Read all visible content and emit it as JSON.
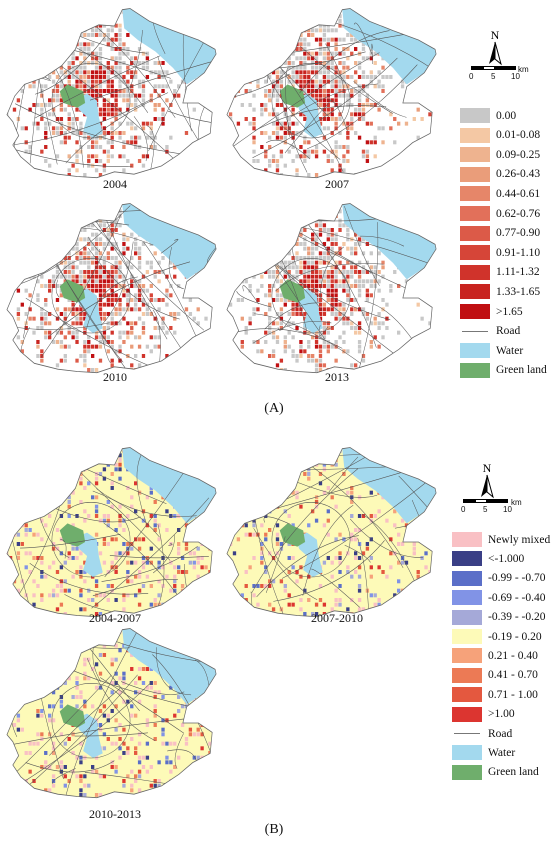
{
  "panel_a": {
    "label": "(A)",
    "maps": [
      {
        "year": "2004"
      },
      {
        "year": "2007"
      },
      {
        "year": "2010"
      },
      {
        "year": "2013"
      }
    ],
    "legend": [
      {
        "label": "0.00",
        "color": "#c8c8c8"
      },
      {
        "label": "0.01-0.08",
        "color": "#f4c8a4"
      },
      {
        "label": "0.09-0.25",
        "color": "#eeb38f"
      },
      {
        "label": "0.26-0.43",
        "color": "#ea9d7a"
      },
      {
        "label": "0.44-0.61",
        "color": "#e68669"
      },
      {
        "label": "0.62-0.76",
        "color": "#e2705a"
      },
      {
        "label": "0.77-0.90",
        "color": "#dc5a48"
      },
      {
        "label": "0.91-1.10",
        "color": "#d64538"
      },
      {
        "label": "1.11-1.32",
        "color": "#d0332b"
      },
      {
        "label": "1.33-1.65",
        "color": "#c8231f"
      },
      {
        "label": ">1.65",
        "color": "#c00f12"
      },
      {
        "label": "Road",
        "type": "line"
      },
      {
        "label": "Water",
        "color": "#a3d9ee"
      },
      {
        "label": "Green land",
        "color": "#6fae6c"
      }
    ]
  },
  "panel_b": {
    "label": "(B)",
    "maps": [
      {
        "year": "2004-2007"
      },
      {
        "year": "2007-2010"
      },
      {
        "year": "2010-2013"
      }
    ],
    "legend": [
      {
        "label": "Newly mixed",
        "color": "#f9c0c4"
      },
      {
        "label": "<-1.000",
        "color": "#3a3f86"
      },
      {
        "label": "-0.99 - -0.70",
        "color": "#5b6fc8"
      },
      {
        "label": "-0.69 - -0.40",
        "color": "#8193e6"
      },
      {
        "label": "-0.39 - -0.20",
        "color": "#a5a9d8"
      },
      {
        "label": "-0.19 - 0.20",
        "color": "#fdfab8"
      },
      {
        "label": "0.21 - 0.40",
        "color": "#f6a27a"
      },
      {
        "label": "0.41 - 0.70",
        "color": "#ec7a55"
      },
      {
        "label": "0.71 - 1.00",
        "color": "#e4583f"
      },
      {
        "label": ">1.00",
        "color": "#dc3530"
      },
      {
        "label": "Road",
        "type": "line"
      },
      {
        "label": "Water",
        "color": "#a3d9ee"
      },
      {
        "label": "Green land",
        "color": "#6fae6c"
      }
    ]
  },
  "north_arrow": {
    "letter": "N"
  },
  "scale": {
    "ticks": [
      "0",
      "5",
      "10"
    ],
    "unit": "km"
  }
}
